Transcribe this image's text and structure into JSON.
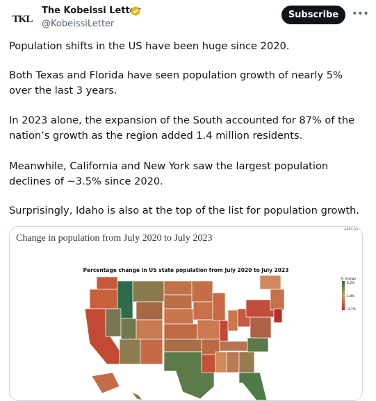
{
  "header": {
    "name": "The Kobeissi Letter",
    "handle": "@KobeissiLetter",
    "avatar_text": "TKL",
    "button": "Subscribe"
  },
  "post": {
    "paragraphs": [
      "Population shifts in the US have been huge since 2020.",
      "Both Texas and Florida have seen population growth of nearly 5% over the last 3 years.",
      "In 2023 alone, the expansion of the South accounted for 87% of the nation’s growth as the region added 1.4 million residents.",
      "Meanwhile, California and New York saw the largest population declines of ~3.5% since 2020.",
      "Surprisingly, Idaho is also at the top of the list for population growth."
    ]
  },
  "image": {
    "title": "Change in population from July 2020 to July 2023",
    "source": "APOLLO",
    "map_title": "Percentage change in US state population from July 2020 to July 2023",
    "legend": {
      "title": "% change",
      "labels": [
        "6.2%",
        "1.8%",
        "-3.7%"
      ]
    }
  }
}
